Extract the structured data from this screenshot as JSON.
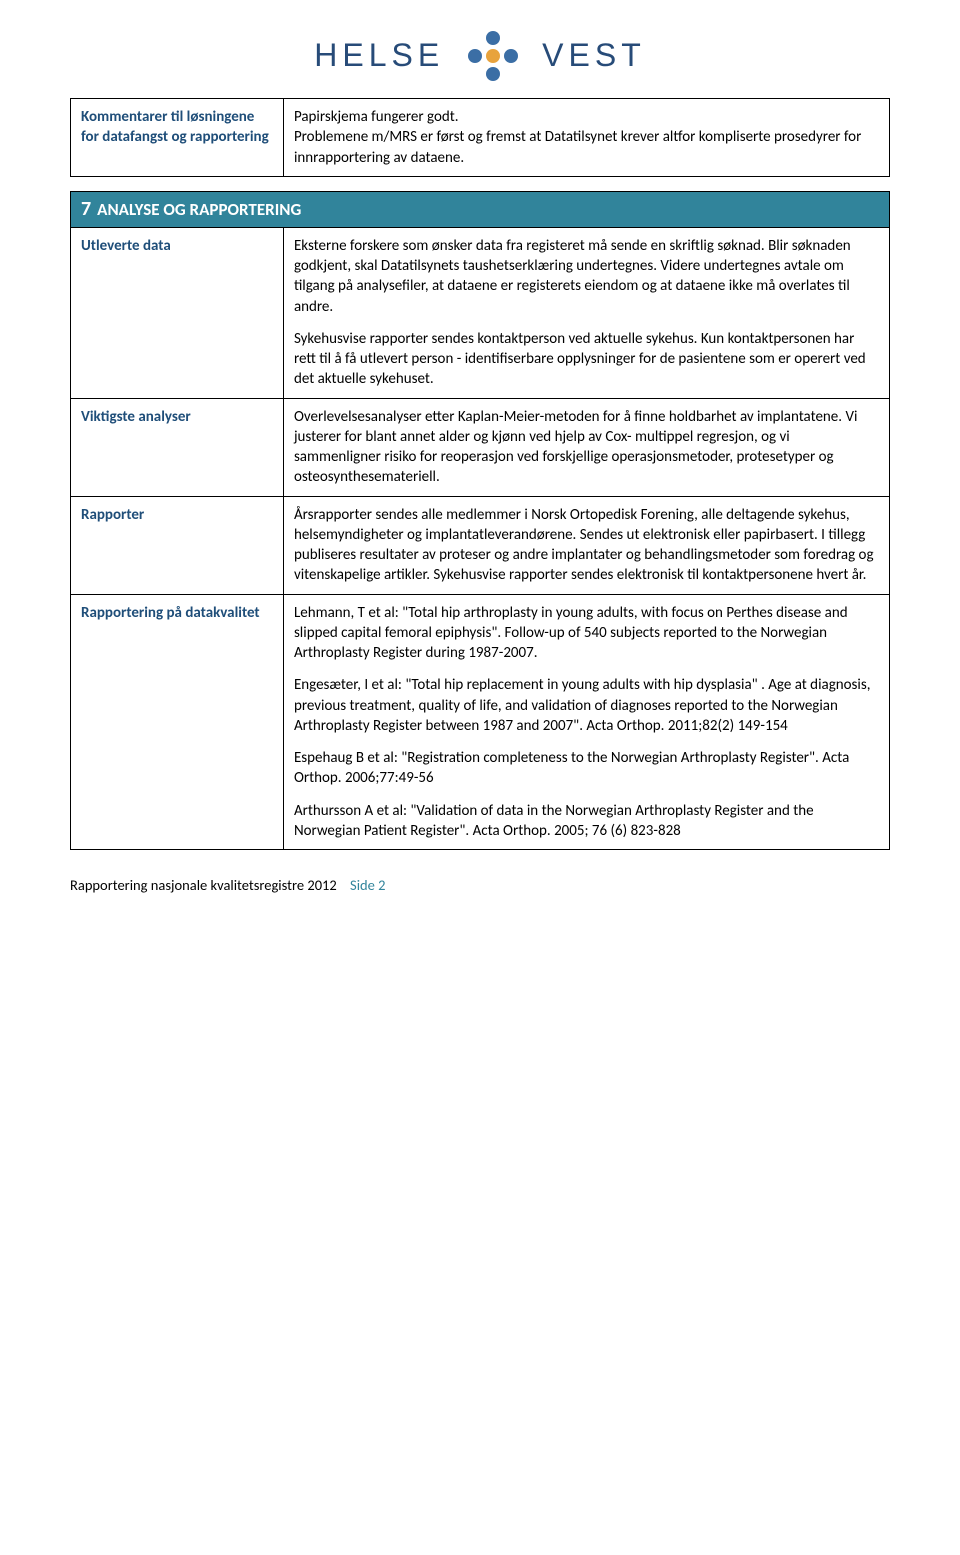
{
  "logo": {
    "left_word": "HELSE",
    "right_word": "VEST",
    "brand_color": "#274b78",
    "dot_blue": "#3b6ea5",
    "dot_orange": "#e8a33d"
  },
  "table1": {
    "label": "Kommentarer til løsningene for datafangst og rapportering",
    "content": "Papirskjema fungerer godt.\nProblemene m/MRS er først og fremst at Datatilsynet krever altfor  kompliserte prosedyrer for innrapportering av dataene."
  },
  "section7": {
    "number": "7",
    "title": "ANALYSE OG RAPPORTERING",
    "rows": [
      {
        "label": "Utleverte data",
        "paras": [
          "Eksterne forskere som ønsker data fra registeret må sende en skriftlig søknad. Blir søknaden godkjent, skal Datatilsynets taushetserklæring  undertegnes.  Videre undertegnes avtale om tilgang på analysefiler, at dataene er registerets eiendom og at dataene ikke må overlates til andre.",
          "Sykehusvise rapporter sendes kontaktperson ved aktuelle sykehus. Kun kontaktpersonen har rett til å få utlevert  person - identifiserbare opplysninger for de pasientene som er operert ved det aktuelle sykehuset."
        ]
      },
      {
        "label": "Viktigste analyser",
        "paras": [
          "Overlevelsesanalyser etter Kaplan-Meier-metoden for å finne holdbarhet av implantatene. Vi justerer for blant annet alder og kjønn ved hjelp av Cox- multippel regresjon, og vi sammenligner risiko for reoperasjon ved forskjellige operasjonsmetoder, protesetyper og osteosynthesemateriell."
        ]
      },
      {
        "label": "Rapporter",
        "paras": [
          "Årsrapporter sendes alle medlemmer i Norsk Ortopedisk Forening, alle deltagende sykehus, helsemyndigheter og implantatleverandørene.  Sendes ut  elektronisk eller papirbasert. I tillegg publiseres resultater av proteser og andre implantater og behandlingsmetoder som foredrag og vitenskapelige artikler. Sykehusvise rapporter sendes elektronisk til kontaktpersonene hvert år."
        ]
      },
      {
        "label": "Rapportering på datakvalitet",
        "paras": [
          "Lehmann, T et al: \"Total hip arthroplasty in young adults, with focus on Perthes disease and slipped capital femoral epiphysis\". Follow-up of 540  subjects reported to the Norwegian Arthroplasty Register during 1987-2007.",
          "Engesæter, I et al: \"Total hip replacement in young adults with hip dysplasia\" . Age at diagnosis, previous treatment, quality of life, and validation of diagnoses reported to the Norwegian Arthroplasty Register between 1987 and 2007\". Acta Orthop. 2011;82(2) 149-154",
          "Espehaug B et al: \"Registration completeness to the Norwegian Arthroplasty Register\". Acta Orthop. 2006;77:49-56",
          " Arthursson A et al: \"Validation of data in the Norwegian Arthroplasty Register and the Norwegian Patient Register\". Acta Orthop.  2005; 76 (6) 823-828"
        ]
      }
    ]
  },
  "footer": {
    "text": "Rapportering nasjonale kvalitetsregistre 2012",
    "page_label": "Side 2"
  },
  "colors": {
    "label_color": "#1f4e79",
    "header_bg": "#31849b",
    "border": "#000000",
    "footer_accent": "#31849b"
  }
}
